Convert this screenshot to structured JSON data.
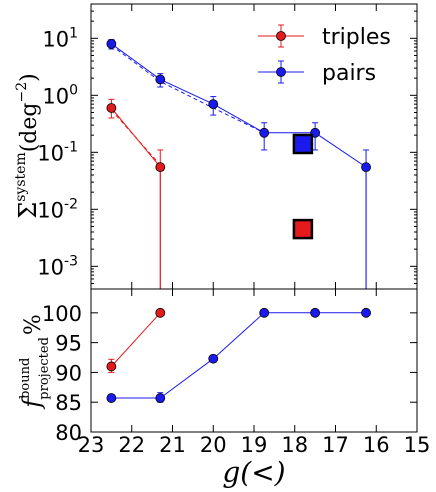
{
  "colors": {
    "triples": "#e41a1c",
    "pairs": "#1a1aee"
  },
  "chart_data": [
    {
      "type": "line",
      "panel": "top",
      "yscale": "log",
      "xlim": [
        23,
        15
      ],
      "ylim": [
        0.0004,
        40
      ],
      "ylabel": {
        "base": "Σ",
        "sup": "system",
        "unit": "(deg",
        "unit_sup": "−2",
        "close": ")"
      },
      "yticks": [
        {
          "value": 10,
          "base": "10",
          "exp": "1"
        },
        {
          "value": 1,
          "base": "10",
          "exp": "0"
        },
        {
          "value": 0.1,
          "base": "10",
          "exp": "-1"
        },
        {
          "value": 0.01,
          "base": "10",
          "exp": "-2"
        },
        {
          "value": 0.001,
          "base": "10",
          "exp": "-3"
        }
      ],
      "legend": {
        "placement": "top-right"
      },
      "series": [
        {
          "name": "triples",
          "color": "#e41a1c",
          "points": [
            {
              "x": 22.5,
              "y": 0.6,
              "err_low": 0.4,
              "err_high": 0.85
            },
            {
              "x": 21.3,
              "y": 0.055,
              "err_low": 0.0004,
              "err_high": 0.11
            }
          ],
          "dashed": [
            {
              "x": 22.5,
              "y": 0.55
            },
            {
              "x": 21.3,
              "y": 0.06
            }
          ],
          "tail": {
            "x": 21.3,
            "y": 0.0004
          }
        },
        {
          "name": "pairs",
          "color": "#1a1aee",
          "points": [
            {
              "x": 22.5,
              "y": 8,
              "err_low": 6.5,
              "err_high": 9.5
            },
            {
              "x": 21.3,
              "y": 1.9,
              "err_low": 1.4,
              "err_high": 2.4
            },
            {
              "x": 20,
              "y": 0.7,
              "err_low": 0.45,
              "err_high": 0.95
            },
            {
              "x": 18.75,
              "y": 0.22,
              "err_low": 0.11,
              "err_high": 0.33
            },
            {
              "x": 17.5,
              "y": 0.22,
              "err_low": 0.11,
              "err_high": 0.33
            },
            {
              "x": 16.25,
              "y": 0.055,
              "err_low": 0.0004,
              "err_high": 0.11
            }
          ],
          "dashed": [
            {
              "x": 22.5,
              "y": 7.5
            },
            {
              "x": 21.3,
              "y": 1.75
            },
            {
              "x": 20,
              "y": 0.6
            },
            {
              "x": 18.75,
              "y": 0.22
            }
          ],
          "tail": {
            "x": 16.25,
            "y": 0.0004
          }
        }
      ],
      "squares": [
        {
          "series": "pairs",
          "x": 17.8,
          "y": 0.14
        },
        {
          "series": "triples",
          "x": 17.8,
          "y": 0.0045
        }
      ]
    },
    {
      "type": "line",
      "panel": "bottom",
      "xlim": [
        23,
        15
      ],
      "ylim": [
        80,
        104
      ],
      "xlabel": "g(<)",
      "ylabel": {
        "base": "f",
        "sup": "bound",
        "sub": "projected",
        "unit": "%"
      },
      "xticks": [
        "23",
        "22",
        "21",
        "20",
        "19",
        "18",
        "17",
        "16",
        "15"
      ],
      "yticks": [
        "80",
        "85",
        "90",
        "95",
        "100"
      ],
      "series": [
        {
          "name": "triples",
          "color": "#e41a1c",
          "points": [
            {
              "x": 22.5,
              "y": 91,
              "err_low": 90,
              "err_high": 92.2
            },
            {
              "x": 21.3,
              "y": 100
            }
          ]
        },
        {
          "name": "pairs",
          "color": "#1a1aee",
          "points": [
            {
              "x": 22.5,
              "y": 85.7
            },
            {
              "x": 21.3,
              "y": 85.7,
              "err_low": 85,
              "err_high": 86.6
            },
            {
              "x": 20,
              "y": 92.3
            },
            {
              "x": 18.75,
              "y": 100
            },
            {
              "x": 17.5,
              "y": 100
            },
            {
              "x": 16.25,
              "y": 100
            }
          ]
        }
      ]
    }
  ]
}
